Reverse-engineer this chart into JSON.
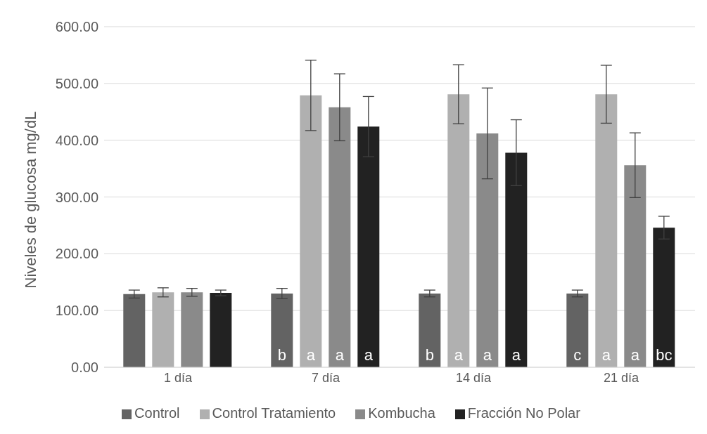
{
  "chart_data": {
    "type": "bar",
    "ylabel": "Niveles de glucosa mg/dL",
    "categories": [
      "1 día",
      "7 día",
      "14 día",
      "21 día"
    ],
    "series": [
      {
        "name": "Control",
        "color": "#636363",
        "values": [
          129,
          130,
          130,
          130
        ],
        "errors": [
          7,
          9,
          6,
          6
        ],
        "value_labels": [
          null,
          "b",
          "b",
          "c"
        ]
      },
      {
        "name": "Control Tratamiento",
        "color": "#b0b0b0",
        "values": [
          132,
          479,
          481,
          481
        ],
        "errors": [
          8,
          62,
          52,
          51
        ],
        "value_labels": [
          null,
          "a",
          "a",
          "a"
        ]
      },
      {
        "name": "Kombucha",
        "color": "#8a8a8a",
        "values": [
          132,
          458,
          412,
          356
        ],
        "errors": [
          7,
          59,
          80,
          57
        ],
        "value_labels": [
          null,
          "a",
          "a",
          "a"
        ]
      },
      {
        "name": "Fracción No Polar",
        "color": "#222222",
        "values": [
          131,
          424,
          378,
          246
        ],
        "errors": [
          5,
          53,
          58,
          20
        ],
        "value_labels": [
          null,
          "a",
          "a",
          "bc"
        ]
      }
    ],
    "ylim": [
      0,
      600
    ],
    "yticks": [
      {
        "value": 0,
        "label": "0.00"
      },
      {
        "value": 100,
        "label": "100.00"
      },
      {
        "value": 200,
        "label": "200.00"
      },
      {
        "value": 300,
        "label": "300.00"
      },
      {
        "value": 400,
        "label": "400.00"
      },
      {
        "value": 500,
        "label": "500.00"
      },
      {
        "value": 600,
        "label": "600.00"
      }
    ],
    "grid": "y",
    "legend": "bottom"
  }
}
